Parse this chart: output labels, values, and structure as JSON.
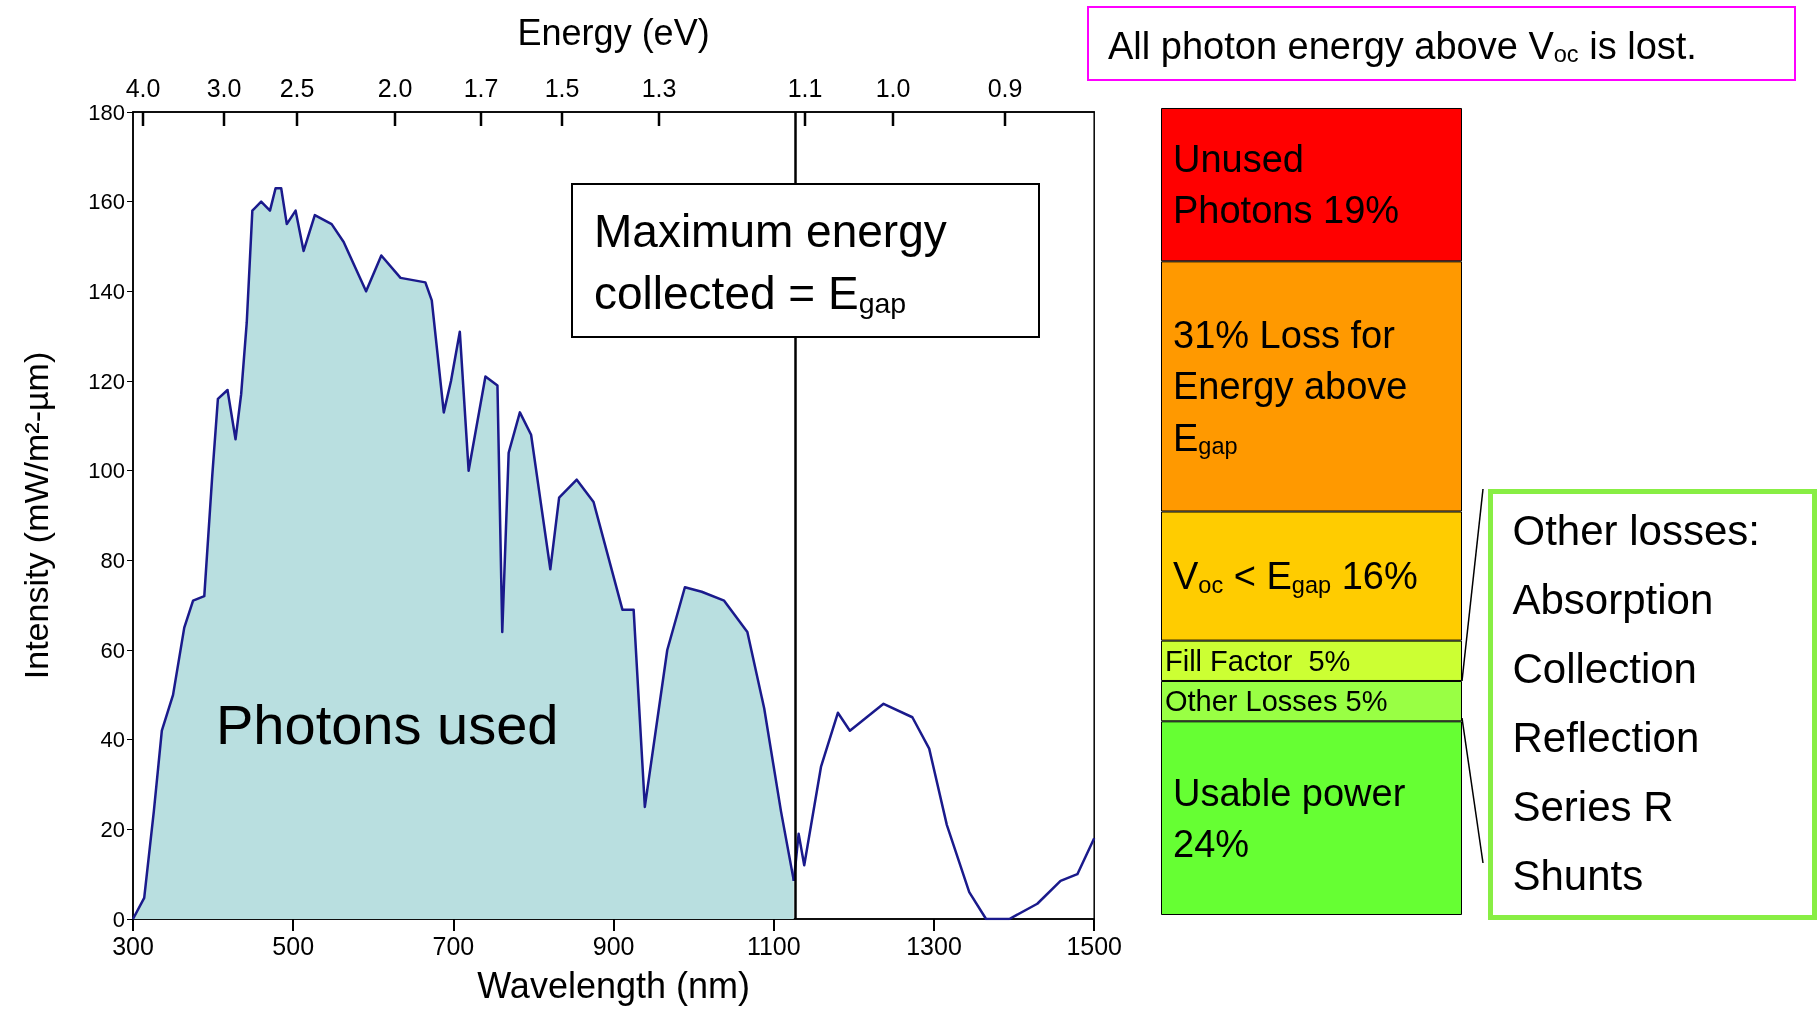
{
  "chart_data": [
    {
      "type": "area",
      "xlabel": "Wavelength (nm)",
      "ylabel": "Intensity (mW/m²-µm)",
      "x2label": "Energy (eV)",
      "xlim": [
        300,
        1500
      ],
      "xticks": [
        300,
        500,
        700,
        900,
        1100,
        1300,
        1500
      ],
      "ylim": [
        0,
        180
      ],
      "yticks": [
        0,
        20,
        40,
        60,
        80,
        100,
        120,
        140,
        160,
        180
      ],
      "grid": false,
      "series": [
        {
          "type": "area",
          "color": "#1a1a8c",
          "x": [
            300,
            314,
            326,
            336,
            350,
            364,
            375,
            389,
            399,
            406,
            418,
            428,
            435,
            442,
            449,
            460,
            471,
            478,
            485,
            492,
            503,
            513,
            527,
            548,
            563,
            591,
            610,
            634,
            665,
            673,
            688,
            697,
            708,
            719,
            740,
            755,
            761,
            769,
            783,
            797,
            821,
            832,
            854,
            875,
            911,
            925,
            939,
            967,
            989,
            1010,
            1038,
            1067,
            1088,
            1109,
            1125
          ],
          "values": [
            0,
            4.7,
            24,
            42,
            50,
            65,
            71,
            72,
            99,
            116,
            118,
            107,
            117,
            133,
            158,
            160,
            158,
            163,
            163,
            155,
            158,
            149,
            157,
            155,
            151,
            140,
            148,
            143,
            142,
            138,
            113,
            120,
            131,
            100,
            121,
            119,
            64,
            104,
            113,
            108,
            78,
            94,
            98,
            93,
            69,
            69,
            25,
            60,
            74,
            73,
            71,
            64,
            47,
            24,
            8.5
          ]
        },
        {
          "type": "line",
          "color": "#1a1a8c",
          "x": [
            1125,
            1131,
            1138,
            1159,
            1180,
            1195,
            1237,
            1273,
            1294,
            1316,
            1344,
            1365,
            1394,
            1429,
            1458,
            1479,
            1500
          ],
          "values": [
            8.5,
            19,
            12,
            34,
            46,
            42,
            48,
            45,
            38,
            21,
            6,
            0,
            0,
            3.4,
            8.5,
            10,
            18
          ]
        }
      ],
      "ref_lines": [
        {
          "axis": "x",
          "value": 1127,
          "color": "#000000"
        }
      ],
      "annotations": [
        "Maximum energy collected = E$_{gap}$",
        "Photons used",
        "4.0",
        "3.0",
        "2.5",
        "2.0",
        "1.7",
        "1.5",
        "1.3",
        "1.1",
        "1.0",
        "0.9"
      ]
    },
    {
      "type": "bar",
      "stacked": true,
      "categories": [
        null
      ],
      "series": [
        {
          "color": "#66ff33",
          "values": [
            24
          ],
          "value_labels": [
            "Usable power 24%"
          ]
        },
        {
          "color": "#99ff44",
          "values": [
            5
          ],
          "value_labels": [
            "Other Losses 5%"
          ]
        },
        {
          "color": "#ccff33",
          "values": [
            5
          ],
          "value_labels": [
            "Fill Factor  5%"
          ]
        },
        {
          "color": "#ffcc00",
          "values": [
            16
          ],
          "value_labels": [
            "V$_{oc}$ < E$_{gap}$ 16%"
          ]
        },
        {
          "color": "#ff9900",
          "values": [
            31
          ],
          "value_labels": [
            "31% Loss for Energy above E$_{gap}$"
          ]
        },
        {
          "color": "#ff0000",
          "values": [
            19
          ],
          "value_labels": [
            "Unused Photons 19%"
          ]
        }
      ],
      "annotations": [
        "All photon energy above V$_{oc}$ is lost.",
        "Other losses:",
        "Absorption",
        "Collection",
        "Reflection",
        "Series R",
        "Shunts"
      ]
    }
  ]
}
